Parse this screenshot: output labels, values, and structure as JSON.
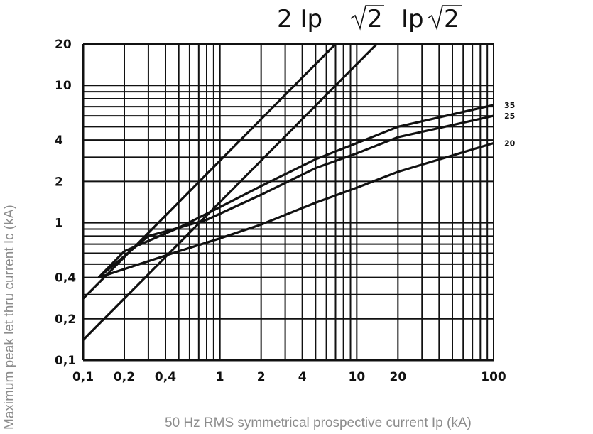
{
  "chart_data": {
    "type": "line",
    "title": "",
    "xlabel": "50 Hz RMS symmetrical prospective current Ip (kA)",
    "ylabel": "Maximum peak let thru current Ic (kA)",
    "x_scale": "log",
    "y_scale": "log",
    "xlim": [
      0.1,
      100
    ],
    "ylim": [
      0.1,
      20
    ],
    "grid": true,
    "x_ticks": [
      {
        "value": 0.1,
        "label": "0,1"
      },
      {
        "value": 0.2,
        "label": "0,2"
      },
      {
        "value": 0.4,
        "label": "0,4"
      },
      {
        "value": 1,
        "label": "1"
      },
      {
        "value": 2,
        "label": "2"
      },
      {
        "value": 4,
        "label": "4"
      },
      {
        "value": 10,
        "label": "10"
      },
      {
        "value": 20,
        "label": "20"
      },
      {
        "value": 100,
        "label": "100"
      }
    ],
    "y_ticks": [
      {
        "value": 0.1,
        "label": "0,1"
      },
      {
        "value": 0.2,
        "label": "0,2"
      },
      {
        "value": 0.4,
        "label": "0,4"
      },
      {
        "value": 1,
        "label": "1"
      },
      {
        "value": 2,
        "label": "2"
      },
      {
        "value": 4,
        "label": "4"
      },
      {
        "value": 10,
        "label": "10"
      },
      {
        "value": 20,
        "label": "20"
      }
    ],
    "reference_lines": [
      {
        "label_parts": [
          "2 Ip",
          "2"
        ],
        "x": [
          0.1,
          7
        ],
        "y": [
          0.28,
          20
        ]
      },
      {
        "label_parts": [
          "Ip",
          "2"
        ],
        "x": [
          0.1,
          14
        ],
        "y": [
          0.14,
          20
        ]
      }
    ],
    "series": [
      {
        "name": "35",
        "x": [
          0.13,
          0.2,
          0.5,
          1,
          2,
          5,
          10,
          20,
          100
        ],
        "y": [
          0.4,
          0.62,
          0.92,
          1.3,
          1.85,
          2.9,
          3.8,
          5.0,
          7.2
        ]
      },
      {
        "name": "25",
        "x": [
          0.13,
          0.3,
          0.5,
          0.8,
          2,
          5,
          10,
          20,
          100
        ],
        "y": [
          0.4,
          0.8,
          0.92,
          1.05,
          1.6,
          2.5,
          3.2,
          4.2,
          6.0
        ]
      },
      {
        "name": "20",
        "x": [
          0.13,
          0.2,
          0.5,
          1,
          2,
          5,
          10,
          20,
          100
        ],
        "y": [
          0.4,
          0.46,
          0.62,
          0.77,
          0.97,
          1.4,
          1.8,
          2.35,
          3.8
        ]
      }
    ]
  }
}
